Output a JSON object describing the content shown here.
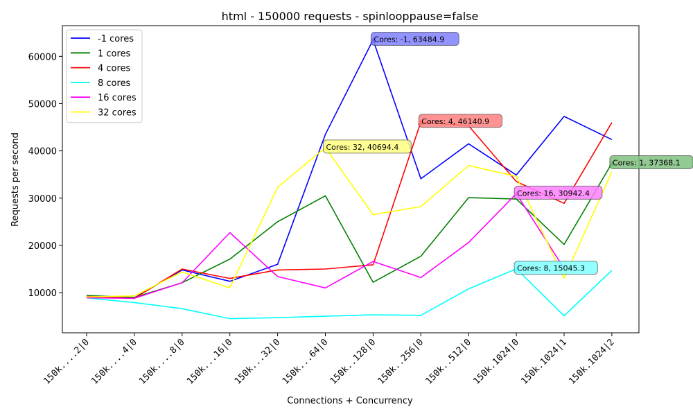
{
  "chart_data": {
    "type": "line",
    "title": "html - 150000 requests - spinlooppause=false",
    "xlabel": "Connections + Concurrency",
    "ylabel": "Requests per second",
    "categories": [
      "150k....2|0",
      "150k....4|0",
      "150k....8|0",
      "150k...16|0",
      "150k...32|0",
      "150k...64|0",
      "150k..128|0",
      "150k..256|0",
      "150k..512|0",
      "150k.1024|0",
      "150k.1024|1",
      "150k.1024|2"
    ],
    "ylim": [
      1500,
      66500
    ],
    "yticks": [
      10000,
      20000,
      30000,
      40000,
      50000,
      60000
    ],
    "ytick_labels": [
      "10000",
      "20000",
      "30000",
      "40000",
      "50000",
      "60000"
    ],
    "legend_position": "upper-left",
    "grid": false,
    "series": [
      {
        "name": "-1 cores",
        "color": "#0000ff",
        "values": [
          8900,
          8900,
          14800,
          12400,
          16000,
          43500,
          63484.9,
          34100,
          41500,
          34900,
          47300,
          42400
        ]
      },
      {
        "name": "1 cores",
        "color": "#008000",
        "values": [
          9400,
          9000,
          12100,
          17100,
          25000,
          30500,
          12200,
          17700,
          30100,
          29800,
          20200,
          37368.1
        ]
      },
      {
        "name": "4 cores",
        "color": "#ff0000",
        "values": [
          9200,
          8800,
          15000,
          13000,
          14800,
          15000,
          15900,
          46140.9,
          45300,
          33500,
          28900,
          46000
        ]
      },
      {
        "name": "8 cores",
        "color": "#00ffff",
        "values": [
          8900,
          7900,
          6600,
          4500,
          4700,
          5000,
          5300,
          5200,
          10800,
          15045.3,
          5100,
          14700
        ]
      },
      {
        "name": "16 cores",
        "color": "#ff00ff",
        "values": [
          8900,
          8800,
          12100,
          22700,
          13400,
          11000,
          16600,
          13200,
          20600,
          30942.4,
          15100,
          null
        ]
      },
      {
        "name": "32 cores",
        "color": "#ffff00",
        "values": [
          9100,
          9300,
          14400,
          11000,
          32300,
          40694.4,
          26500,
          28200,
          36900,
          34600,
          13000,
          35600
        ]
      }
    ],
    "annotations": [
      {
        "text": "Cores: -1, 63484.9",
        "category_index": 6,
        "value": 63484.9,
        "color": "#0000ff",
        "bg": "#8080ff"
      },
      {
        "text": "Cores: 4, 46140.9",
        "category_index": 7,
        "value": 46140.9,
        "color": "#ff0000",
        "bg": "#ff8080"
      },
      {
        "text": "Cores: 32, 40694.4",
        "category_index": 5,
        "value": 40694.4,
        "color": "#ffff00",
        "bg": "#ffff80"
      },
      {
        "text": "Cores: 1, 37368.1",
        "category_index": 11,
        "value": 37368.1,
        "color": "#008000",
        "bg": "#80c080"
      },
      {
        "text": "Cores: 16, 30942.4",
        "category_index": 9,
        "value": 30942.4,
        "color": "#ff00ff",
        "bg": "#ff80ff"
      },
      {
        "text": "Cores: 8, 15045.3",
        "category_index": 9,
        "value": 15045.3,
        "color": "#00ffff",
        "bg": "#80ffff"
      }
    ]
  }
}
